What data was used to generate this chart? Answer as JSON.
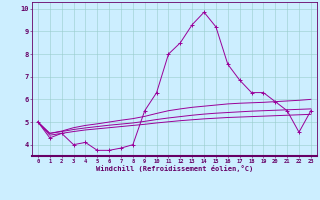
{
  "xlabel": "Windchill (Refroidissement éolien,°C)",
  "x_values": [
    0,
    1,
    2,
    3,
    4,
    5,
    6,
    7,
    8,
    9,
    10,
    11,
    12,
    13,
    14,
    15,
    16,
    17,
    18,
    19,
    20,
    21,
    22,
    23
  ],
  "line1": [
    5.0,
    4.3,
    4.5,
    4.0,
    4.1,
    3.75,
    3.75,
    3.85,
    4.0,
    5.5,
    6.3,
    8.0,
    8.5,
    9.3,
    9.85,
    9.2,
    7.55,
    6.85,
    6.3,
    6.3,
    5.9,
    5.5,
    4.55,
    5.5
  ],
  "line2": [
    5.0,
    4.5,
    4.6,
    4.75,
    4.85,
    4.92,
    5.0,
    5.08,
    5.15,
    5.25,
    5.38,
    5.5,
    5.58,
    5.65,
    5.7,
    5.75,
    5.8,
    5.83,
    5.85,
    5.87,
    5.9,
    5.93,
    5.96,
    6.0
  ],
  "line3": [
    5.0,
    4.5,
    4.58,
    4.67,
    4.74,
    4.8,
    4.86,
    4.91,
    4.96,
    5.03,
    5.11,
    5.18,
    5.24,
    5.3,
    5.35,
    5.39,
    5.42,
    5.45,
    5.48,
    5.5,
    5.52,
    5.54,
    5.56,
    5.58
  ],
  "line4": [
    5.0,
    4.42,
    4.5,
    4.58,
    4.65,
    4.7,
    4.75,
    4.8,
    4.85,
    4.9,
    4.96,
    5.01,
    5.06,
    5.1,
    5.14,
    5.17,
    5.2,
    5.22,
    5.24,
    5.26,
    5.28,
    5.3,
    5.32,
    5.34
  ],
  "line_color": "#990099",
  "bg_color": "#cceeff",
  "grid_color": "#99cccc",
  "axis_color": "#660066",
  "ylim": [
    3.5,
    10.3
  ],
  "xlim": [
    -0.5,
    23.5
  ]
}
